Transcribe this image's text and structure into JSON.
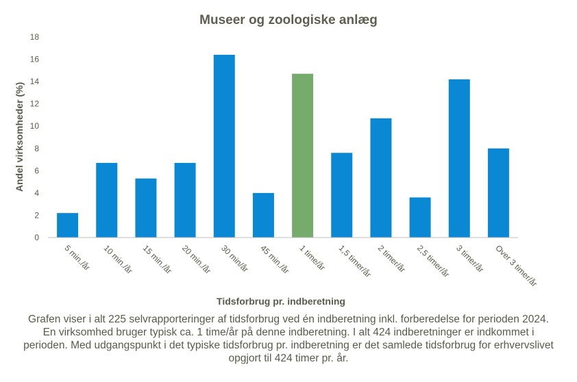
{
  "chart_data": {
    "type": "bar",
    "title": "Museer og zoologiske anlæg",
    "xlabel": "Tidsforbrug pr. indberetning",
    "ylabel": "Andel virksomheder  (%)",
    "ylim": [
      0,
      18
    ],
    "yticks": [
      0,
      2,
      4,
      6,
      8,
      10,
      12,
      14,
      16,
      18
    ],
    "grid": false,
    "categories": [
      "5 min./år",
      "10 min./år",
      "15 min./år",
      "20 min./år",
      "30 min/år",
      "45 min./år",
      "1 time/år",
      "1,5 timer/år",
      "2 timer/år",
      "2,5 timer/år",
      "3 timer/år",
      "Over 3 timer/år"
    ],
    "values": [
      2.2,
      6.7,
      5.3,
      6.7,
      16.4,
      4.0,
      14.7,
      7.6,
      10.7,
      3.6,
      14.2,
      8.0
    ],
    "colors": {
      "default": "#0a88d4",
      "highlight": "#77ab6e",
      "axis": "#bfbfbf"
    },
    "highlight_category": "1 time/år"
  },
  "caption": "Grafen viser i alt 225 selvrapporteringer af tidsforbrug  ved én indberetning inkl. forberedelse for perioden 2024. En virksomhed bruger typisk ca. 1 time/år på denne indberetning. I alt 424 indberetninger er indkommet i perioden. Med udgangspunkt i det typiske tidsforbrug  pr. indberetning er det samlede tidsforbrug for erhvervslivet  opgjort til 424 timer pr. år."
}
